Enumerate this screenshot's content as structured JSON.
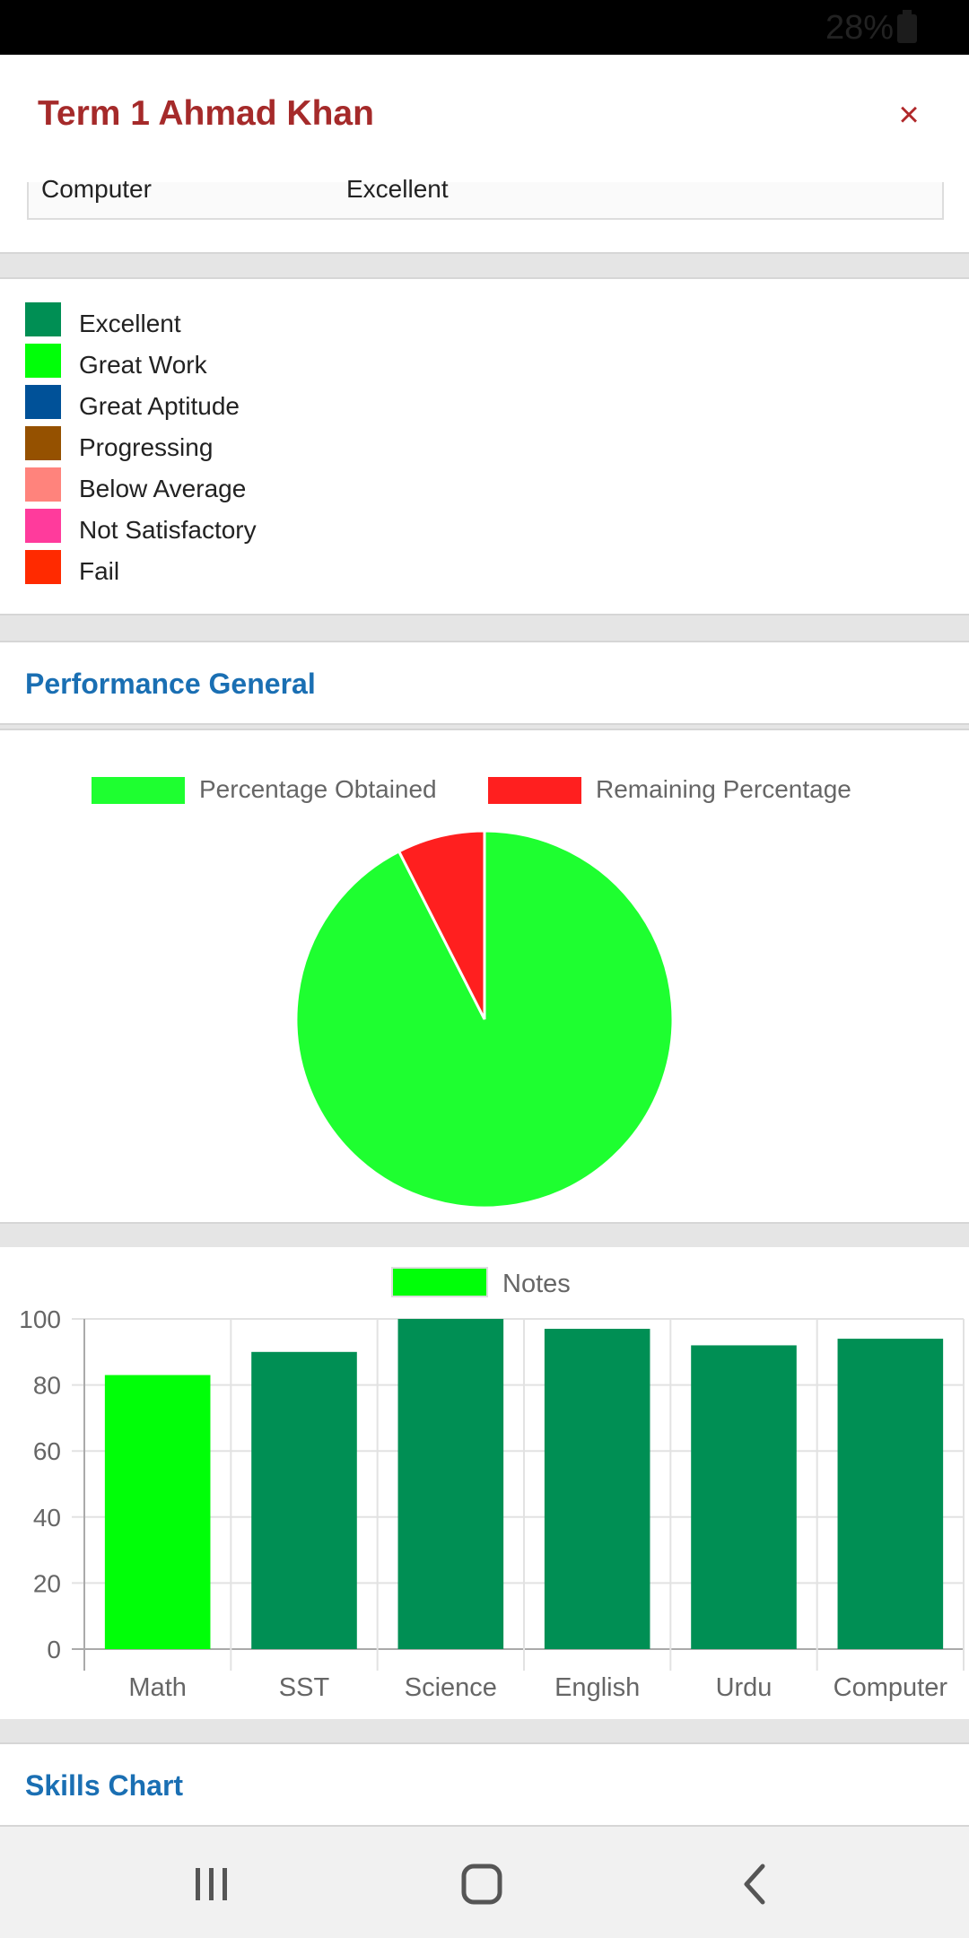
{
  "status_bar": {
    "battery": "28%"
  },
  "modal": {
    "title": "Term 1 Ahmad Khan",
    "close_label": "×"
  },
  "grades_table": {
    "last_row": {
      "subject": "Computer",
      "grade": "Excellent"
    }
  },
  "grade_legend": [
    {
      "label": "Excellent",
      "color": "#008f54"
    },
    {
      "label": "Great Work",
      "color": "#00ff08"
    },
    {
      "label": "Great Aptitude",
      "color": "#005198"
    },
    {
      "label": "Progressing",
      "color": "#955100"
    },
    {
      "label": "Below Average",
      "color": "#ff837c"
    },
    {
      "label": "Not Satisfactory",
      "color": "#ff3b9c"
    },
    {
      "label": "Fail",
      "color": "#ff2a00"
    }
  ],
  "performance_section": {
    "title": "Performance General"
  },
  "skills_section": {
    "title": "Skills Chart"
  },
  "chart_data": [
    {
      "type": "pie",
      "categories": [
        "Percentage Obtained",
        "Remaining Percentage"
      ],
      "values": [
        92.5,
        7.5
      ],
      "colors": [
        "#1eff30",
        "#ff1f1f"
      ],
      "legend_position": "top"
    },
    {
      "type": "bar",
      "title": "",
      "legend": [
        "Notes"
      ],
      "legend_position": "top",
      "categories": [
        "Math",
        "SST",
        "Science",
        "English",
        "Urdu",
        "Computer"
      ],
      "series": [
        {
          "name": "Notes",
          "values": [
            83,
            90,
            100,
            97,
            92,
            94
          ]
        }
      ],
      "bar_colors": [
        "#00ff08",
        "#008f54",
        "#008f54",
        "#008f54",
        "#008f54",
        "#008f54"
      ],
      "legend_color": "#00ff08",
      "ylim": [
        0,
        100
      ],
      "yticks": [
        0,
        20,
        40,
        60,
        80,
        100
      ],
      "grid": true
    }
  ],
  "nav_bar": {
    "buttons": [
      "recent-apps",
      "home",
      "back"
    ]
  }
}
